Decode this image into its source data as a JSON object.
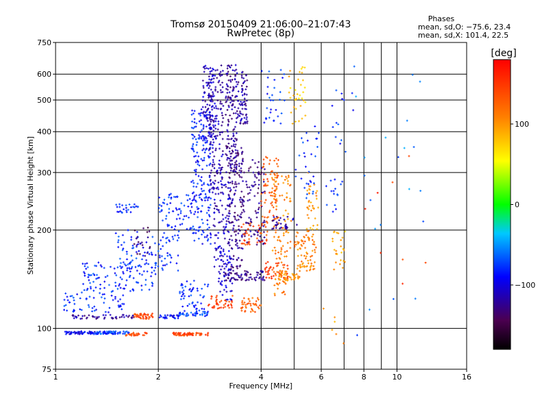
{
  "chart_data": {
    "type": "scatter",
    "title": "Tromsø 20150409 21:06:00–21:07:43",
    "subtitle": "RwPretec (8p)",
    "xlabel": "Frequency [MHz]",
    "ylabel": "Stationary phase Virtual Height [km]",
    "x_scale": "log",
    "y_scale": "log",
    "xlim": [
      1,
      16
    ],
    "ylim": [
      75,
      750
    ],
    "x_ticks": [
      1,
      2,
      4,
      6,
      8,
      10,
      16
    ],
    "x_tick_labels": [
      "1",
      "2",
      "4",
      "6",
      "8",
      "10",
      "16"
    ],
    "x_grid_lines": [
      2,
      4,
      6,
      8,
      10
    ],
    "x_minor_lines": [
      5,
      7,
      9
    ],
    "y_ticks": [
      75,
      100,
      200,
      300,
      400,
      500,
      600,
      750
    ],
    "y_tick_labels": [
      "75",
      "100",
      "200",
      "300",
      "400",
      "500",
      "600",
      "750"
    ],
    "y_grid_lines": [
      100,
      200,
      300,
      400,
      500,
      600
    ],
    "grid": true,
    "stats": {
      "heading": "Phases",
      "line_o": "mean, sd,O: −75.6, 23.4",
      "line_x": "mean, sd,X: 101.4, 22.5"
    },
    "colorbar": {
      "label": "[deg]",
      "min": -180,
      "max": 180,
      "ticks": [
        100,
        0,
        -100
      ],
      "tick_labels": [
        "100",
        "0",
        "−100"
      ],
      "placement": "right"
    },
    "clusters": [
      {
        "x": [
          1.05,
          1.5
        ],
        "y": [
          96,
          98
        ],
        "phase": -95,
        "n": 80
      },
      {
        "x": [
          1.3,
          1.65
        ],
        "y": [
          96,
          98
        ],
        "phase": -70,
        "n": 40
      },
      {
        "x": [
          1.6,
          1.85
        ],
        "y": [
          95,
          97
        ],
        "phase": 140,
        "n": 30
      },
      {
        "x": [
          2.2,
          2.8
        ],
        "y": [
          95,
          97
        ],
        "phase": 145,
        "n": 70
      },
      {
        "x": [
          1.1,
          1.7
        ],
        "y": [
          107,
          110
        ],
        "phase": -120,
        "n": 50
      },
      {
        "x": [
          1.7,
          1.95
        ],
        "y": [
          107,
          111
        ],
        "phase": 140,
        "n": 40
      },
      {
        "x": [
          1.95,
          2.3
        ],
        "y": [
          107,
          110
        ],
        "phase": -90,
        "n": 25
      },
      {
        "x": [
          2.3,
          2.8
        ],
        "y": [
          109,
          112
        ],
        "phase": -70,
        "n": 30
      },
      {
        "x": [
          1.05,
          1.6
        ],
        "y": [
          112,
          130
        ],
        "phase": -80,
        "n": 60
      },
      {
        "x": [
          1.2,
          2.0
        ],
        "y": [
          130,
          160
        ],
        "phase": -80,
        "n": 110
      },
      {
        "x": [
          1.5,
          2.3
        ],
        "y": [
          150,
          200
        ],
        "phase": -80,
        "n": 100
      },
      {
        "x": [
          1.5,
          1.75
        ],
        "y": [
          225,
          240
        ],
        "phase": -80,
        "n": 25
      },
      {
        "x": [
          1.7,
          1.9
        ],
        "y": [
          165,
          205
        ],
        "phase": -135,
        "n": 20
      },
      {
        "x": [
          2.0,
          2.6
        ],
        "y": [
          200,
          260
        ],
        "phase": -80,
        "n": 70
      },
      {
        "x": [
          2.3,
          2.8
        ],
        "y": [
          110,
          140
        ],
        "phase": -80,
        "n": 60
      },
      {
        "x": [
          2.5,
          2.85
        ],
        "y": [
          180,
          470
        ],
        "phase": -85,
        "n": 190
      },
      {
        "x": [
          2.7,
          2.95
        ],
        "y": [
          350,
          640
        ],
        "phase": -110,
        "n": 110
      },
      {
        "x": [
          2.8,
          3.1
        ],
        "y": [
          260,
          640
        ],
        "phase": -115,
        "n": 140
      },
      {
        "x": [
          2.9,
          3.25
        ],
        "y": [
          150,
          280
        ],
        "phase": -110,
        "n": 90
      },
      {
        "x": [
          3.0,
          3.3
        ],
        "y": [
          120,
          180
        ],
        "phase": -100,
        "n": 50
      },
      {
        "x": [
          3.15,
          3.4
        ],
        "y": [
          300,
          640
        ],
        "phase": -120,
        "n": 140
      },
      {
        "x": [
          3.2,
          3.55
        ],
        "y": [
          150,
          360
        ],
        "phase": -125,
        "n": 140
      },
      {
        "x": [
          3.4,
          3.65
        ],
        "y": [
          420,
          610
        ],
        "phase": -120,
        "n": 70
      },
      {
        "x": [
          3.5,
          4.1
        ],
        "y": [
          180,
          330
        ],
        "phase": -125,
        "n": 110
      },
      {
        "x": [
          3.5,
          4.1
        ],
        "y": [
          140,
          150
        ],
        "phase": -125,
        "n": 40
      },
      {
        "x": [
          3.1,
          3.5
        ],
        "y": [
          140,
          148
        ],
        "phase": -125,
        "n": 30
      },
      {
        "x": [
          2.8,
          3.3
        ],
        "y": [
          115,
          126
        ],
        "phase": 145,
        "n": 40
      },
      {
        "x": [
          3.5,
          4.0
        ],
        "y": [
          112,
          124
        ],
        "phase": 125,
        "n": 40
      },
      {
        "x": [
          4.0,
          4.5
        ],
        "y": [
          210,
          340
        ],
        "phase": 130,
        "n": 70
      },
      {
        "x": [
          3.5,
          4.2
        ],
        "y": [
          180,
          210
        ],
        "phase": 140,
        "n": 40
      },
      {
        "x": [
          4.3,
          4.9
        ],
        "y": [
          170,
          300
        ],
        "phase": 110,
        "n": 70
      },
      {
        "x": [
          4.1,
          4.8
        ],
        "y": [
          140,
          160
        ],
        "phase": 150,
        "n": 40
      },
      {
        "x": [
          4.3,
          4.75
        ],
        "y": [
          125,
          180
        ],
        "phase": 110,
        "n": 40
      },
      {
        "x": [
          4.5,
          5.2
        ],
        "y": [
          140,
          150
        ],
        "phase": 105,
        "n": 45
      },
      {
        "x": [
          5.0,
          5.8
        ],
        "y": [
          175,
          200
        ],
        "phase": 115,
        "n": 40
      },
      {
        "x": [
          5.1,
          5.8
        ],
        "y": [
          150,
          175
        ],
        "phase": 105,
        "n": 40
      },
      {
        "x": [
          5.4,
          5.9
        ],
        "y": [
          200,
          300
        ],
        "phase": 100,
        "n": 35
      },
      {
        "x": [
          4.8,
          5.4
        ],
        "y": [
          420,
          640
        ],
        "phase": 80,
        "n": 35
      },
      {
        "x": [
          4.0,
          4.7
        ],
        "y": [
          420,
          620
        ],
        "phase": -80,
        "n": 30
      },
      {
        "x": [
          4.3,
          5.1
        ],
        "y": [
          200,
          220
        ],
        "phase": -120,
        "n": 30
      },
      {
        "x": [
          5.0,
          5.9
        ],
        "y": [
          250,
          420
        ],
        "phase": -80,
        "n": 30
      },
      {
        "x": [
          6.4,
          7.1
        ],
        "y": [
          150,
          210
        ],
        "phase": 90,
        "n": 25
      },
      {
        "x": [
          6.2,
          7.0
        ],
        "y": [
          220,
          310
        ],
        "phase": -80,
        "n": 15
      },
      {
        "x": [
          6.0,
          7.5
        ],
        "y": [
          320,
          640
        ],
        "phase": -80,
        "n": 15
      },
      {
        "x": [
          7.5,
          12
        ],
        "y": [
          90,
          620
        ],
        "phase": -60,
        "n": 20
      },
      {
        "x": [
          8.0,
          12.5
        ],
        "y": [
          110,
          560
        ],
        "phase": 150,
        "n": 8
      },
      {
        "x": [
          5.5,
          7.0
        ],
        "y": [
          90,
          120
        ],
        "phase": 100,
        "n": 6
      }
    ]
  }
}
